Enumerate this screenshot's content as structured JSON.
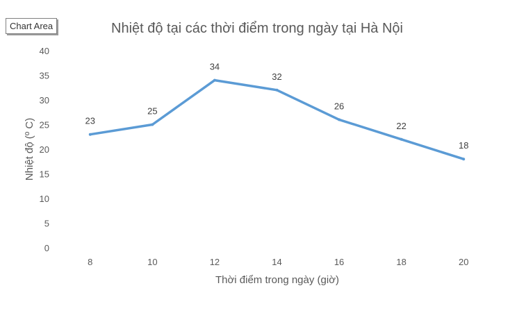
{
  "chart_area_label": "Chart Area",
  "chart_data": {
    "type": "line",
    "title": "Nhiệt độ tại các thời điểm trong ngày tại Hà Nội",
    "xlabel": "Thời điểm trong ngày (giờ)",
    "ylabel": "Nhiệt độ (º C)",
    "x": [
      8,
      10,
      12,
      14,
      16,
      18,
      20
    ],
    "series": [
      {
        "values": [
          23,
          25,
          34,
          32,
          26,
          22,
          18
        ]
      }
    ],
    "yticks": [
      0,
      5,
      10,
      15,
      20,
      25,
      30,
      35,
      40
    ],
    "ylim": [
      0,
      40
    ],
    "grid": false,
    "legend": "none",
    "data_labels": true,
    "line_color": "#5b9bd5"
  }
}
